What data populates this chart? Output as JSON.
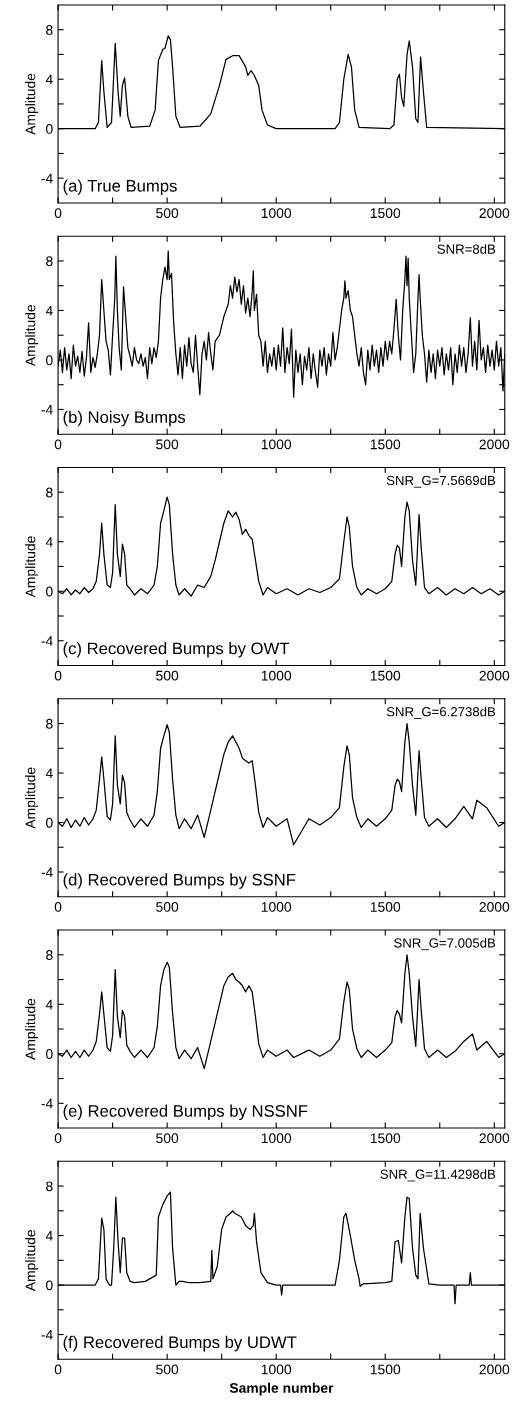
{
  "chart_data": [
    {
      "type": "line",
      "ylabel": "Amplitude",
      "annotations": [
        "(a) True Bumps"
      ],
      "xlim": [
        0,
        2048
      ],
      "ylim": [
        -6,
        10
      ],
      "xticks": [
        0,
        {
          "value": 250,
          "label": null
        },
        500,
        {
          "value": 750,
          "label": null
        },
        1000,
        {
          "value": 1250,
          "label": null
        },
        1500,
        {
          "value": 1750,
          "label": null
        },
        2000
      ],
      "yticks": [
        -4,
        {
          "value": -2,
          "label": null
        },
        0,
        {
          "value": 2,
          "label": null
        },
        4,
        {
          "value": 6,
          "label": null
        },
        8
      ],
      "series": [
        {
          "color": "#000000",
          "x": [
            0,
            170,
            185,
            200,
            210,
            225,
            245,
            262,
            275,
            285,
            295,
            305,
            320,
            335,
            420,
            445,
            460,
            480,
            490,
            505,
            515,
            525,
            540,
            560,
            650,
            700,
            740,
            770,
            800,
            830,
            860,
            870,
            885,
            900,
            920,
            935,
            960,
            1000,
            1270,
            1290,
            1310,
            1330,
            1345,
            1360,
            1380,
            1520,
            1540,
            1555,
            1565,
            1575,
            1585,
            1600,
            1610,
            1625,
            1640,
            1650,
            1662,
            1675,
            1690,
            2048
          ],
          "values": [
            0,
            0,
            0.5,
            5.5,
            3,
            0.1,
            0.5,
            6.9,
            3,
            1,
            3.5,
            4.1,
            1,
            0.1,
            0.2,
            1.5,
            5.5,
            6.4,
            6.5,
            7.5,
            7.2,
            5,
            1,
            0.1,
            0.2,
            1.2,
            3.5,
            5.6,
            5.9,
            5.9,
            5,
            4.3,
            4.7,
            4.3,
            3.5,
            1.5,
            0.3,
            0,
            0,
            0.5,
            4,
            6,
            5,
            1.5,
            0.1,
            0,
            0.3,
            4,
            4.4,
            2.5,
            1.8,
            6,
            7.1,
            5,
            0.8,
            0.5,
            5.8,
            3,
            0.1,
            0
          ]
        }
      ]
    },
    {
      "type": "line",
      "ylabel": "Amplitude",
      "annotations": [
        "SNR=8dB",
        "(b) Noisy Bumps"
      ],
      "xlim": [
        0,
        2048
      ],
      "ylim": [
        -6,
        10
      ],
      "xticks": [
        0,
        {
          "value": 250,
          "label": null
        },
        500,
        {
          "value": 750,
          "label": null
        },
        1000,
        {
          "value": 1250,
          "label": null
        },
        1500,
        {
          "value": 1750,
          "label": null
        },
        2000
      ],
      "yticks": [
        -4,
        {
          "value": -2,
          "label": null
        },
        0,
        {
          "value": 2,
          "label": null
        },
        4,
        {
          "value": 6,
          "label": null
        },
        8
      ],
      "series": [
        {
          "color": "#000000",
          "x": [
            0,
            10,
            20,
            30,
            40,
            50,
            60,
            70,
            80,
            90,
            100,
            110,
            120,
            130,
            140,
            150,
            160,
            170,
            180,
            190,
            200,
            210,
            220,
            230,
            240,
            250,
            260,
            265,
            272,
            280,
            290,
            300,
            310,
            320,
            330,
            340,
            350,
            360,
            370,
            380,
            390,
            400,
            410,
            420,
            430,
            440,
            450,
            460,
            470,
            480,
            490,
            500,
            505,
            510,
            520,
            530,
            540,
            550,
            560,
            570,
            580,
            590,
            600,
            610,
            620,
            630,
            640,
            650,
            660,
            670,
            680,
            690,
            700,
            710,
            720,
            740,
            760,
            780,
            790,
            800,
            810,
            820,
            830,
            840,
            850,
            860,
            870,
            880,
            890,
            895,
            900,
            910,
            920,
            930,
            940,
            950,
            960,
            970,
            980,
            990,
            1000,
            1010,
            1020,
            1030,
            1040,
            1050,
            1060,
            1070,
            1080,
            1090,
            1100,
            1110,
            1120,
            1130,
            1140,
            1150,
            1160,
            1170,
            1180,
            1190,
            1200,
            1210,
            1220,
            1230,
            1240,
            1250,
            1260,
            1270,
            1280,
            1290,
            1300,
            1310,
            1315,
            1320,
            1330,
            1340,
            1350,
            1360,
            1370,
            1380,
            1390,
            1400,
            1410,
            1420,
            1430,
            1440,
            1450,
            1460,
            1470,
            1480,
            1490,
            1500,
            1510,
            1520,
            1530,
            1540,
            1550,
            1560,
            1570,
            1580,
            1590,
            1595,
            1600,
            1605,
            1610,
            1620,
            1630,
            1640,
            1650,
            1655,
            1660,
            1670,
            1680,
            1690,
            1700,
            1710,
            1720,
            1730,
            1740,
            1750,
            1760,
            1770,
            1780,
            1790,
            1800,
            1810,
            1820,
            1830,
            1840,
            1850,
            1860,
            1870,
            1880,
            1890,
            1900,
            1910,
            1920,
            1930,
            1940,
            1950,
            1960,
            1970,
            1980,
            1990,
            2000,
            2010,
            2020,
            2030,
            2040,
            2048
          ],
          "values": [
            -0.5,
            0.8,
            -1,
            1,
            -0.8,
            0.5,
            -1.5,
            1.2,
            -0.5,
            0.3,
            -1,
            0.7,
            -1.3,
            0.2,
            3,
            -1,
            0.2,
            -0.6,
            0.5,
            2,
            6.5,
            4,
            1.5,
            0.8,
            -1.2,
            2,
            5,
            8.4,
            4,
            1,
            -0.8,
            5.9,
            3.5,
            1,
            0.3,
            -0.5,
            1,
            0,
            -0.3,
            0.5,
            -0.5,
            0.2,
            -1.5,
            1,
            -0.3,
            1,
            0.2,
            1.5,
            5,
            6.5,
            7.5,
            6.5,
            8.8,
            6.5,
            7,
            3,
            0.5,
            -1.2,
            1,
            -1.5,
            1.2,
            -0.5,
            1.8,
            -0.3,
            -1,
            2,
            -0.5,
            -2.8,
            0.5,
            1.5,
            0,
            2.2,
            0.5,
            -0.8,
            1.5,
            2,
            3.5,
            4.5,
            6,
            5,
            6.7,
            5.5,
            6.5,
            4.5,
            6,
            3.8,
            5,
            3.5,
            5.5,
            7.2,
            4,
            5.3,
            2,
            1.5,
            -0.5,
            1.5,
            -1,
            0.5,
            -0.5,
            1,
            -0.8,
            1.2,
            -0.5,
            2.6,
            -1,
            1,
            -0.3,
            2.5,
            -3,
            0.8,
            -1,
            0.5,
            -2,
            0.3,
            -0.8,
            1,
            -1.5,
            0.5,
            -1,
            -2.2,
            0.8,
            -0.5,
            1,
            -1.2,
            0.5,
            -0.5,
            2.2,
            0,
            1,
            2.5,
            4,
            5,
            6.4,
            5,
            5.6,
            4,
            3.5,
            2,
            0.5,
            -0.5,
            1,
            -1,
            -2,
            0.8,
            -0.8,
            1.2,
            -0.5,
            0.8,
            -1,
            1,
            -0.5,
            1.5,
            0,
            1.5,
            0.5,
            2.5,
            4.9,
            2,
            0,
            4,
            6.5,
            8.4,
            6,
            8.2,
            5,
            2,
            -1,
            0.5,
            5,
            6.9,
            5,
            2,
            0.5,
            -1.8,
            0.8,
            -1,
            0.5,
            -1.5,
            0.8,
            -0.5,
            1,
            -1.2,
            0.5,
            -0.8,
            1,
            -2,
            0.5,
            -1,
            1.2,
            -0.5,
            1,
            -1,
            0.5,
            3.4,
            -0.5,
            1.5,
            -0.8,
            3.2,
            0,
            1,
            -1,
            1.2,
            -0.5,
            0.8,
            -0.8,
            1.5,
            -0.5,
            1,
            -2.5,
            0.5
          ]
        }
      ]
    },
    {
      "type": "line",
      "ylabel": "Amplitude",
      "annotations": [
        "SNR_G=7.5669dB",
        "(c) Recovered Bumps by OWT"
      ],
      "xlim": [
        0,
        2048
      ],
      "ylim": [
        -6,
        10
      ],
      "xticks": [
        0,
        {
          "value": 250,
          "label": null
        },
        500,
        {
          "value": 750,
          "label": null
        },
        1000,
        {
          "value": 1250,
          "label": null
        },
        1500,
        {
          "value": 1750,
          "label": null
        },
        2000
      ],
      "yticks": [
        -4,
        {
          "value": -2,
          "label": null
        },
        0,
        {
          "value": 2,
          "label": null
        },
        4,
        {
          "value": 6,
          "label": null
        },
        8
      ],
      "series": [
        {
          "color": "#000000",
          "x": [
            0,
            20,
            40,
            60,
            80,
            100,
            120,
            140,
            160,
            175,
            190,
            200,
            210,
            225,
            240,
            250,
            262,
            272,
            285,
            295,
            305,
            315,
            330,
            350,
            380,
            410,
            440,
            455,
            470,
            485,
            500,
            510,
            525,
            540,
            555,
            580,
            610,
            640,
            670,
            700,
            720,
            740,
            760,
            780,
            800,
            815,
            830,
            845,
            860,
            875,
            890,
            905,
            920,
            940,
            960,
            1000,
            1050,
            1100,
            1150,
            1200,
            1250,
            1290,
            1310,
            1325,
            1335,
            1350,
            1370,
            1390,
            1420,
            1460,
            1500,
            1530,
            1545,
            1555,
            1565,
            1575,
            1590,
            1600,
            1610,
            1625,
            1640,
            1655,
            1665,
            1680,
            1700,
            1740,
            1780,
            1820,
            1860,
            1900,
            1940,
            1980,
            2020,
            2048
          ],
          "values": [
            0,
            -0.2,
            0.2,
            -0.3,
            0.1,
            -0.2,
            0.3,
            -0.1,
            0.2,
            0.8,
            3,
            5.5,
            3,
            0.5,
            0.3,
            1.5,
            7,
            3,
            1.2,
            3.8,
            3,
            0.5,
            0.2,
            -0.3,
            0.2,
            -0.2,
            0.5,
            2,
            5.5,
            6.5,
            7.6,
            7,
            3,
            0.5,
            -0.3,
            0.2,
            -0.4,
            0.5,
            0.3,
            1.2,
            2.5,
            4,
            5.5,
            6.5,
            6,
            6.4,
            5.8,
            4.6,
            5,
            4.5,
            4.2,
            2.5,
            0.8,
            -0.3,
            0.3,
            -0.2,
            0.2,
            -0.3,
            0.2,
            -0.1,
            0.3,
            1,
            4,
            6,
            5.2,
            2,
            0.3,
            -0.3,
            0.2,
            -0.2,
            0.2,
            0.8,
            3,
            3.7,
            3.5,
            2,
            6,
            7.2,
            6.5,
            2.5,
            0.5,
            6.2,
            3.5,
            0.3,
            -0.2,
            0.3,
            -0.3,
            0.2,
            -0.2,
            0.3,
            -0.2,
            0.2,
            -0.3,
            0
          ]
        }
      ]
    },
    {
      "type": "line",
      "ylabel": "Amplitude",
      "annotations": [
        "SNR_G=6.2738dB",
        "(d) Recovered Bumps by SSNF"
      ],
      "xlim": [
        0,
        2048
      ],
      "ylim": [
        -6,
        10
      ],
      "xticks": [
        0,
        {
          "value": 250,
          "label": null
        },
        500,
        {
          "value": 750,
          "label": null
        },
        1000,
        {
          "value": 1250,
          "label": null
        },
        1500,
        {
          "value": 1750,
          "label": null
        },
        2000
      ],
      "yticks": [
        -4,
        {
          "value": -2,
          "label": null
        },
        0,
        {
          "value": 2,
          "label": null
        },
        4,
        {
          "value": 6,
          "label": null
        },
        8
      ],
      "series": [
        {
          "color": "#000000",
          "x": [
            0,
            20,
            40,
            60,
            80,
            100,
            120,
            140,
            160,
            175,
            190,
            200,
            210,
            225,
            240,
            250,
            262,
            272,
            285,
            295,
            305,
            315,
            330,
            350,
            380,
            410,
            440,
            455,
            470,
            485,
            500,
            510,
            525,
            540,
            555,
            580,
            610,
            640,
            670,
            700,
            720,
            740,
            760,
            780,
            800,
            815,
            830,
            845,
            860,
            875,
            890,
            905,
            920,
            940,
            960,
            1000,
            1050,
            1080,
            1150,
            1200,
            1250,
            1290,
            1310,
            1325,
            1335,
            1350,
            1370,
            1390,
            1420,
            1460,
            1500,
            1530,
            1545,
            1555,
            1565,
            1575,
            1590,
            1600,
            1610,
            1625,
            1640,
            1655,
            1665,
            1680,
            1700,
            1740,
            1780,
            1820,
            1860,
            1900,
            1920,
            1965,
            2020,
            2048
          ],
          "values": [
            0,
            -0.3,
            0.3,
            -0.4,
            0.2,
            -0.3,
            0.4,
            -0.2,
            0.3,
            1,
            3.5,
            5.3,
            3.5,
            0.5,
            0.2,
            1.5,
            7,
            3,
            1.5,
            3.8,
            3.2,
            0.8,
            0.2,
            -0.4,
            0.3,
            -0.3,
            0.6,
            2.5,
            6,
            7,
            7.9,
            7.3,
            3.5,
            0.6,
            -0.5,
            0.3,
            -0.5,
            0.6,
            -1.2,
            1,
            2.5,
            4,
            5.5,
            6.5,
            7,
            6.5,
            6,
            5.2,
            5,
            4.8,
            5,
            3,
            0.8,
            -0.4,
            0.4,
            -0.3,
            0.3,
            -1.8,
            0.3,
            -0.2,
            0.4,
            1.2,
            4.5,
            6.2,
            5.5,
            2,
            0.4,
            -0.4,
            0.3,
            -0.3,
            0.3,
            1,
            3,
            3.5,
            3.3,
            2.5,
            6.5,
            8,
            6.5,
            3,
            0.6,
            5.8,
            3.5,
            0.4,
            -0.3,
            0.3,
            -0.4,
            0.3,
            1.3,
            0.3,
            1.8,
            1.2,
            -0.3,
            0
          ]
        }
      ]
    },
    {
      "type": "line",
      "ylabel": "Amplitude",
      "annotations": [
        "SNR_G=7.005dB",
        "(e) Recovered Bumps by NSSNF"
      ],
      "xlim": [
        0,
        2048
      ],
      "ylim": [
        -6,
        10
      ],
      "xticks": [
        0,
        {
          "value": 250,
          "label": null
        },
        500,
        {
          "value": 750,
          "label": null
        },
        1000,
        {
          "value": 1250,
          "label": null
        },
        1500,
        {
          "value": 1750,
          "label": null
        },
        2000
      ],
      "yticks": [
        -4,
        {
          "value": -2,
          "label": null
        },
        0,
        {
          "value": 2,
          "label": null
        },
        4,
        {
          "value": 6,
          "label": null
        },
        8
      ],
      "series": [
        {
          "color": "#000000",
          "x": [
            0,
            20,
            40,
            60,
            80,
            100,
            120,
            140,
            160,
            175,
            190,
            200,
            210,
            225,
            240,
            250,
            262,
            272,
            285,
            295,
            305,
            315,
            330,
            350,
            380,
            410,
            440,
            455,
            470,
            485,
            500,
            510,
            525,
            540,
            555,
            580,
            610,
            640,
            670,
            700,
            720,
            740,
            760,
            780,
            800,
            815,
            830,
            845,
            860,
            875,
            890,
            905,
            920,
            940,
            960,
            1000,
            1050,
            1080,
            1150,
            1200,
            1250,
            1290,
            1310,
            1325,
            1335,
            1350,
            1370,
            1390,
            1420,
            1460,
            1500,
            1530,
            1545,
            1555,
            1565,
            1575,
            1590,
            1600,
            1610,
            1625,
            1640,
            1655,
            1665,
            1680,
            1700,
            1740,
            1780,
            1820,
            1860,
            1900,
            1920,
            1965,
            2020,
            2048
          ],
          "values": [
            0,
            -0.2,
            0.3,
            -0.3,
            0.2,
            -0.3,
            0.3,
            -0.2,
            0.3,
            1,
            3.2,
            5,
            3.2,
            0.5,
            0.2,
            1.5,
            6.8,
            3,
            1.3,
            3.5,
            3,
            0.7,
            0.2,
            -0.3,
            0.3,
            -0.3,
            0.5,
            2.2,
            5.5,
            6.8,
            7.4,
            7,
            3.3,
            0.5,
            -0.4,
            0.3,
            -0.4,
            0.5,
            -1.2,
            1,
            2.5,
            4,
            5.5,
            6.2,
            6.5,
            6,
            5.8,
            5.5,
            5,
            5.5,
            5,
            3,
            0.8,
            -0.3,
            0.3,
            -0.2,
            0.3,
            -0.3,
            0.3,
            -0.2,
            0.3,
            1.2,
            4.2,
            5.8,
            5.2,
            2,
            0.4,
            -0.3,
            0.3,
            -0.3,
            0.3,
            0.9,
            3,
            3.5,
            3.2,
            2.5,
            6.5,
            8,
            6.5,
            3,
            0.6,
            6,
            3.5,
            0.4,
            -0.3,
            0.3,
            -0.3,
            0.2,
            1,
            1.6,
            0.3,
            1,
            -0.3,
            0
          ]
        }
      ]
    },
    {
      "type": "line",
      "ylabel": "Amplitude",
      "xlabel": "Sample number",
      "annotations": [
        "SNR_G=11.4298dB",
        "(f) Recovered Bumps by UDWT"
      ],
      "xlim": [
        0,
        2048
      ],
      "ylim": [
        -6,
        10
      ],
      "xticks": [
        0,
        {
          "value": 250,
          "label": null
        },
        500,
        {
          "value": 750,
          "label": null
        },
        1000,
        {
          "value": 1250,
          "label": null
        },
        1500,
        {
          "value": 1750,
          "label": null
        },
        2000
      ],
      "yticks": [
        -4,
        {
          "value": -2,
          "label": null
        },
        0,
        {
          "value": 2,
          "label": null
        },
        4,
        {
          "value": 6,
          "label": null
        },
        8
      ],
      "series": [
        {
          "color": "#000000",
          "x": [
            0,
            100,
            170,
            185,
            200,
            210,
            220,
            235,
            245,
            255,
            265,
            275,
            285,
            295,
            305,
            315,
            330,
            350,
            400,
            450,
            460,
            480,
            500,
            515,
            525,
            540,
            555,
            570,
            600,
            650,
            700,
            705,
            710,
            730,
            750,
            770,
            790,
            800,
            810,
            840,
            860,
            880,
            895,
            900,
            910,
            930,
            960,
            1000,
            1020,
            1025,
            1030,
            1100,
            1200,
            1270,
            1290,
            1310,
            1320,
            1340,
            1360,
            1380,
            1385,
            1400,
            1500,
            1530,
            1545,
            1560,
            1575,
            1590,
            1600,
            1610,
            1625,
            1640,
            1650,
            1660,
            1675,
            1700,
            1750,
            1815,
            1820,
            1825,
            1885,
            1890,
            1895,
            1950,
            2048
          ],
          "values": [
            0,
            0,
            0,
            0.5,
            5.4,
            4.5,
            0.5,
            0,
            0,
            3,
            7.1,
            3.5,
            1,
            3.8,
            3.8,
            1,
            0.3,
            0.2,
            0.3,
            0.8,
            5.5,
            6.5,
            7.2,
            7.5,
            3,
            0,
            0.3,
            0.3,
            0.2,
            0.2,
            0.3,
            2.8,
            0.5,
            1.5,
            4.5,
            5.5,
            5.8,
            6,
            5.8,
            5.5,
            4.8,
            4.5,
            4.8,
            5.8,
            3.5,
            1,
            0.2,
            0,
            0,
            -0.8,
            0,
            0,
            0,
            0,
            2,
            5.5,
            5.8,
            4,
            2,
            0.5,
            -0.1,
            0.1,
            0.2,
            0.3,
            3.5,
            3.6,
            1.8,
            5.5,
            7.1,
            7,
            3,
            0.8,
            0.5,
            5.8,
            3,
            0.1,
            0,
            0,
            -1.5,
            0,
            0,
            1,
            0,
            0,
            0
          ]
        }
      ]
    }
  ]
}
